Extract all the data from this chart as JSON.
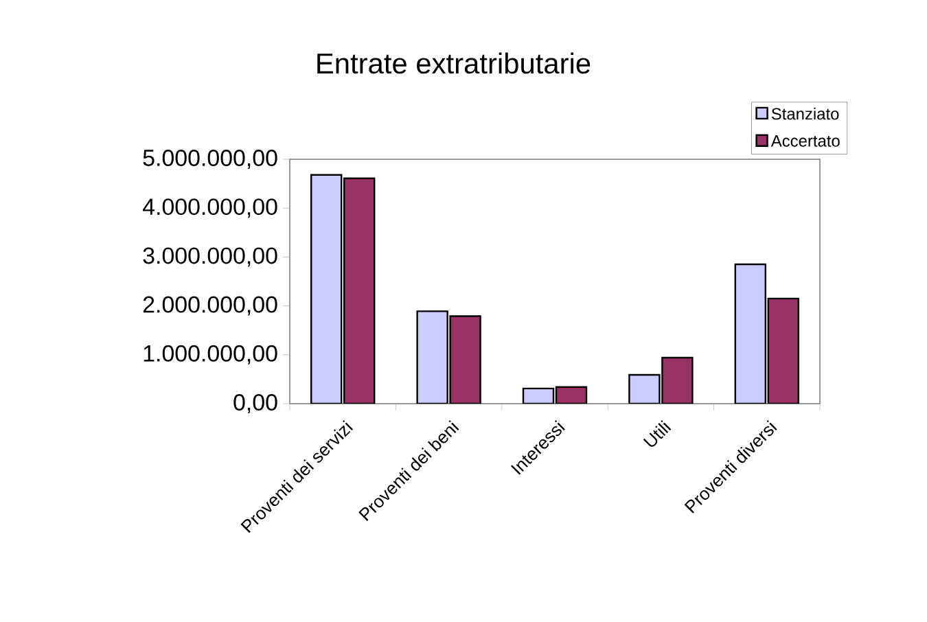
{
  "chart_data": {
    "type": "bar",
    "title": "Entrate extratributarie",
    "categories": [
      "Proventi dei servizi",
      "Proventi dei beni",
      "Interessi",
      "Utili",
      "Proventi diversi"
    ],
    "series": [
      {
        "name": "Stanziato",
        "color": "#ccccff",
        "values": [
          4680000,
          1890000,
          310000,
          590000,
          2850000
        ]
      },
      {
        "name": "Accertato",
        "color": "#993366",
        "values": [
          4610000,
          1790000,
          340000,
          940000,
          2150000
        ]
      }
    ],
    "ylim": [
      0,
      5000000
    ],
    "yticks": [
      {
        "value": 0,
        "label": "0,00"
      },
      {
        "value": 1000000,
        "label": "1.000.000,00"
      },
      {
        "value": 2000000,
        "label": "2.000.000,00"
      },
      {
        "value": 3000000,
        "label": "3.000.000,00"
      },
      {
        "value": 4000000,
        "label": "4.000.000,00"
      },
      {
        "value": 5000000,
        "label": "5.000.000,00"
      }
    ],
    "grid": false,
    "legend": "top right"
  }
}
